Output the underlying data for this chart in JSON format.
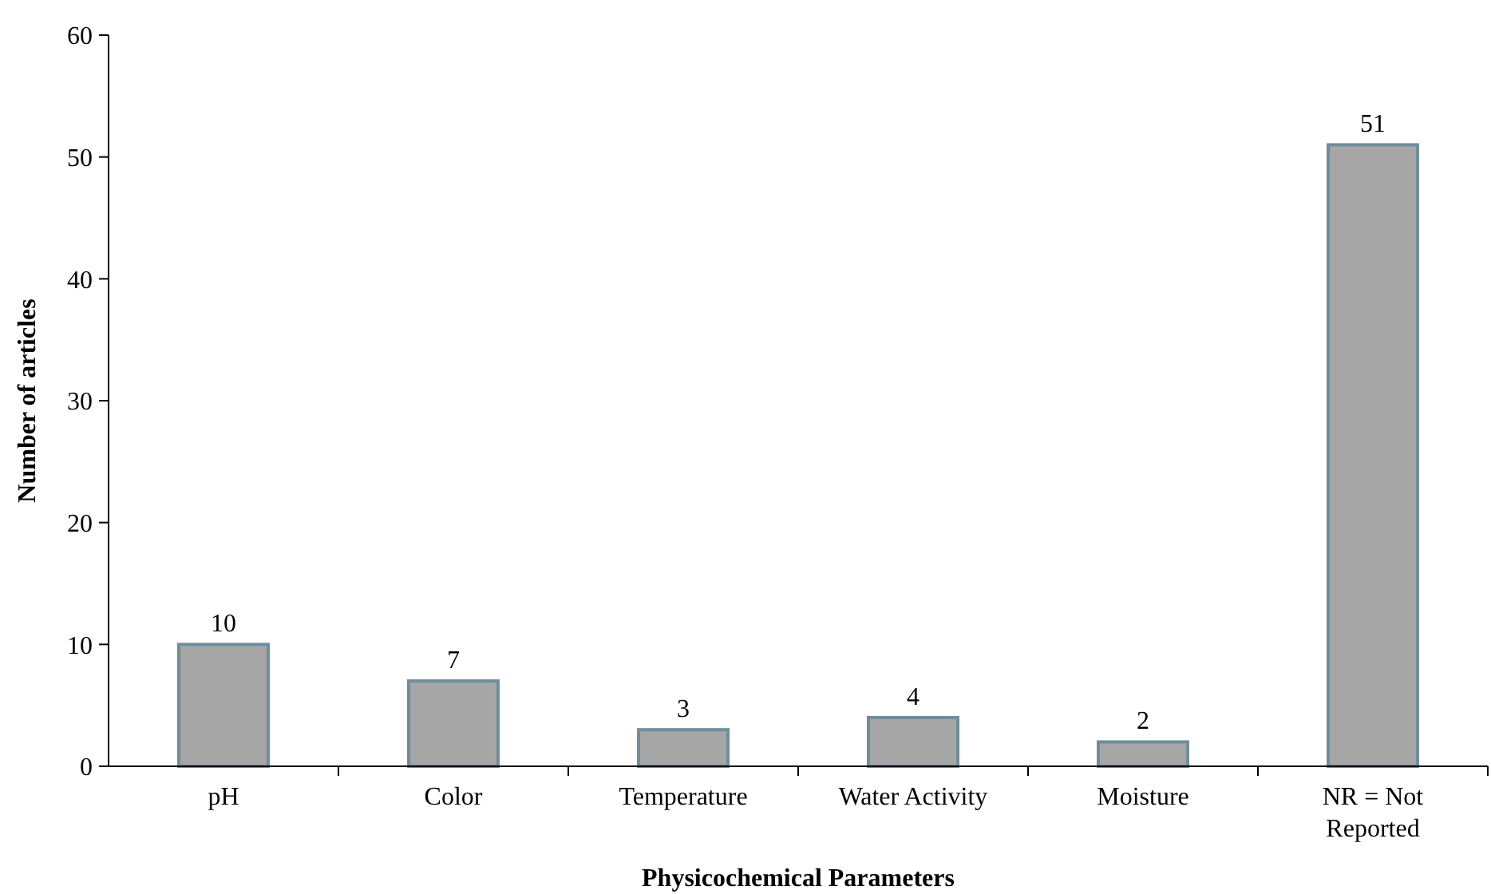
{
  "chart_data": {
    "type": "bar",
    "xlabel": "Physicochemical Parameters",
    "ylabel": "Number of articles",
    "categories": [
      "pH",
      "Color",
      "Temperature",
      "Water Activity",
      "Moisture",
      "NR = Not Reported"
    ],
    "values": [
      10,
      7,
      3,
      4,
      2,
      51
    ],
    "color": "#a6a6a6",
    "data_labels": true,
    "ylim": [
      0,
      60
    ],
    "yticks": [
      0,
      10,
      20,
      30,
      40,
      50,
      60
    ],
    "grid": false
  }
}
